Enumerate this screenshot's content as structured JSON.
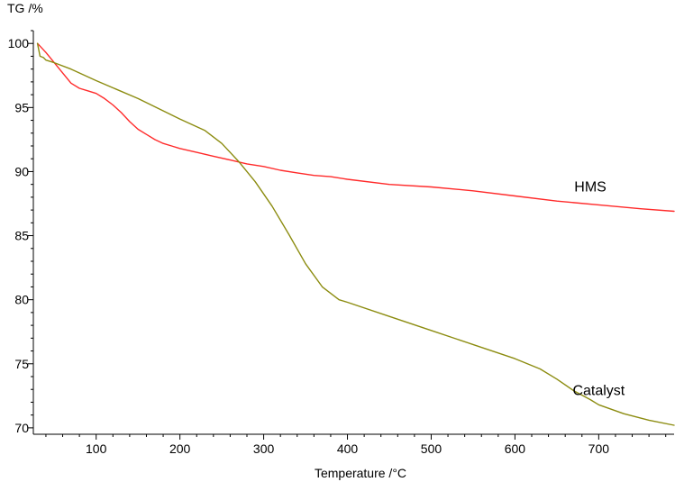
{
  "chart_data": {
    "type": "line",
    "ylabel": "TG /%",
    "xlabel": "Temperature /°C",
    "xlim": [
      25,
      790
    ],
    "ylim": [
      69.5,
      101
    ],
    "x_ticks": [
      100,
      200,
      300,
      400,
      500,
      600,
      700
    ],
    "y_ticks": [
      70,
      75,
      80,
      85,
      90,
      95,
      100
    ],
    "x_minor_step": 20,
    "y_minor_step": 1,
    "grid": false,
    "series": [
      {
        "name": "HMS",
        "color": "#ff2a2a",
        "x": [
          30,
          40,
          50,
          60,
          70,
          80,
          90,
          100,
          110,
          120,
          130,
          140,
          150,
          160,
          170,
          180,
          190,
          200,
          220,
          240,
          260,
          280,
          300,
          320,
          340,
          360,
          380,
          400,
          450,
          500,
          550,
          600,
          650,
          700,
          750,
          790
        ],
        "y": [
          100.0,
          99.3,
          98.5,
          97.7,
          96.9,
          96.5,
          96.3,
          96.1,
          95.7,
          95.2,
          94.6,
          93.9,
          93.3,
          92.9,
          92.5,
          92.2,
          92.0,
          91.8,
          91.5,
          91.2,
          90.9,
          90.6,
          90.4,
          90.1,
          89.9,
          89.7,
          89.6,
          89.4,
          89.0,
          88.8,
          88.5,
          88.1,
          87.7,
          87.4,
          87.1,
          86.9
        ]
      },
      {
        "name": "Catalyst",
        "color": "#8c8c10",
        "x": [
          30,
          33,
          37,
          40,
          50,
          70,
          100,
          150,
          200,
          230,
          250,
          270,
          290,
          310,
          330,
          350,
          370,
          390,
          400,
          450,
          500,
          550,
          600,
          630,
          650,
          670,
          690,
          700,
          730,
          760,
          790
        ],
        "y": [
          100.0,
          99.0,
          98.9,
          98.7,
          98.5,
          98.0,
          97.1,
          95.7,
          94.1,
          93.2,
          92.2,
          90.8,
          89.2,
          87.3,
          85.1,
          82.8,
          81.0,
          80.0,
          79.8,
          78.7,
          77.6,
          76.5,
          75.4,
          74.6,
          73.8,
          72.9,
          72.2,
          71.8,
          71.1,
          70.6,
          70.2
        ]
      }
    ]
  }
}
